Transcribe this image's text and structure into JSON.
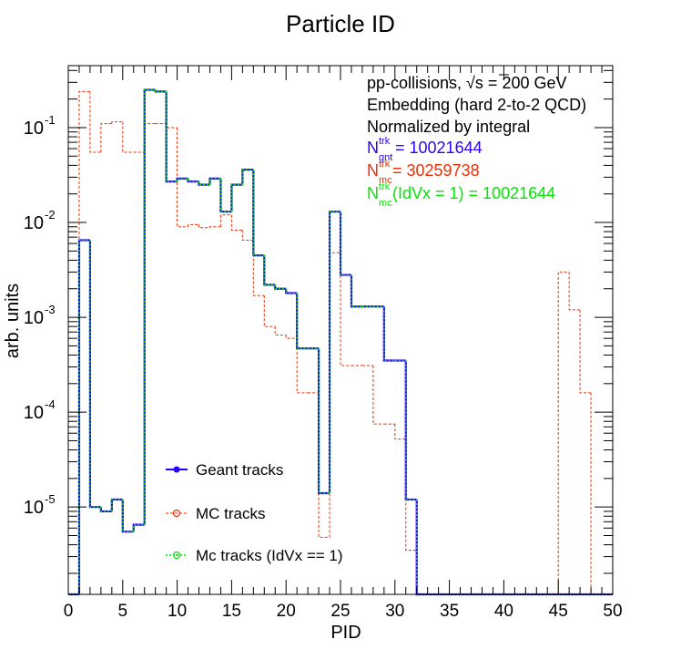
{
  "chart_data": {
    "type": "histogram",
    "title": "Particle ID",
    "xlabel": "PID",
    "ylabel": "arb. units",
    "x_range": [
      0,
      50
    ],
    "y_range": [
      1.2e-06,
      0.45
    ],
    "y_scale": "log",
    "bin_width": 1,
    "x_ticks": [
      0,
      5,
      10,
      15,
      20,
      25,
      30,
      35,
      40,
      45,
      50
    ],
    "y_ticks": [
      {
        "value": 0.1,
        "base": "10",
        "exp": "-1"
      },
      {
        "value": 0.01,
        "base": "10",
        "exp": "-2"
      },
      {
        "value": 0.001,
        "base": "10",
        "exp": "-3"
      },
      {
        "value": 0.0001,
        "base": "10",
        "exp": "-4"
      },
      {
        "value": 1e-05,
        "base": "10",
        "exp": "-5"
      }
    ],
    "annotations": {
      "line1": "pp-collisions, √s = 200 GeV",
      "line2": "Embedding (hard 2-to-2 QCD)",
      "line3": "Normalized by integral",
      "gnt_base": "N",
      "gnt_sup": "trk",
      "gnt_sub": "gnt",
      "gnt_value": " = 10021644",
      "mc_base": "N",
      "mc_sup": "trk",
      "mc_sub": "mc",
      "mc_value": " = 30259738",
      "mc1_base": "N",
      "mc1_sup": "trk",
      "mc1_sub": "mc",
      "mc1_value": "(IdVx = 1) = 10021644"
    },
    "legend_position": "bottom-left",
    "series": [
      {
        "name": "Geant tracks",
        "color": "#2a00ff",
        "style": "solid",
        "marker": "filled-circle",
        "values": [
          0,
          0.0065,
          1e-05,
          9e-06,
          1.2e-05,
          5.5e-06,
          6.5e-06,
          0.25,
          0.24,
          0.027,
          0.029,
          0.027,
          0.025,
          0.029,
          0.013,
          0.025,
          0.036,
          0.0045,
          0.0022,
          0.002,
          0.0018,
          0.00047,
          0.00047,
          1.4e-05,
          0.013,
          0.0028,
          0.0013,
          0.0013,
          0.0013,
          0.00035,
          0.00035,
          1.2e-05,
          0,
          0,
          0,
          0,
          0,
          0,
          0,
          0,
          0,
          0,
          0,
          0,
          0,
          0,
          0,
          0,
          0,
          0
        ]
      },
      {
        "name": "MC tracks",
        "color": "#e8310a",
        "style": "dashed",
        "marker": "open-circle",
        "values": [
          0,
          0.24,
          0.055,
          0.11,
          0.115,
          0.055,
          0.055,
          0.11,
          0.11,
          0.1,
          0.009,
          0.0095,
          0.0088,
          0.009,
          0.012,
          0.0083,
          0.0065,
          0.0017,
          0.0008,
          0.00065,
          0.0006,
          0.00016,
          0.00016,
          4.8e-06,
          0.0048,
          0.00031,
          0.00031,
          0.00031,
          7.5e-05,
          7.5e-05,
          5.2e-05,
          3.5e-06,
          0,
          0,
          0,
          0,
          0,
          0,
          0,
          0,
          0,
          0,
          0,
          0,
          0,
          0.003,
          0.0012,
          0.00016,
          0,
          0
        ]
      },
      {
        "name": "Mc tracks (IdVx == 1)",
        "color": "#00e800",
        "style": "dotted",
        "marker": "open-circle-dot",
        "values": [
          0,
          0.0065,
          1e-05,
          9e-06,
          1.2e-05,
          5.5e-06,
          6.5e-06,
          0.25,
          0.24,
          0.027,
          0.029,
          0.027,
          0.025,
          0.029,
          0.013,
          0.025,
          0.036,
          0.0045,
          0.0022,
          0.002,
          0.0018,
          0.00047,
          0.00047,
          1.4e-05,
          0.013,
          0.0028,
          0.0013,
          0.0013,
          0.0013,
          0.00035,
          0.00035,
          1.2e-05,
          0,
          0,
          0,
          0,
          0,
          0,
          0,
          0,
          0,
          0,
          0,
          0,
          0,
          0,
          0,
          0,
          0,
          0
        ]
      }
    ]
  }
}
